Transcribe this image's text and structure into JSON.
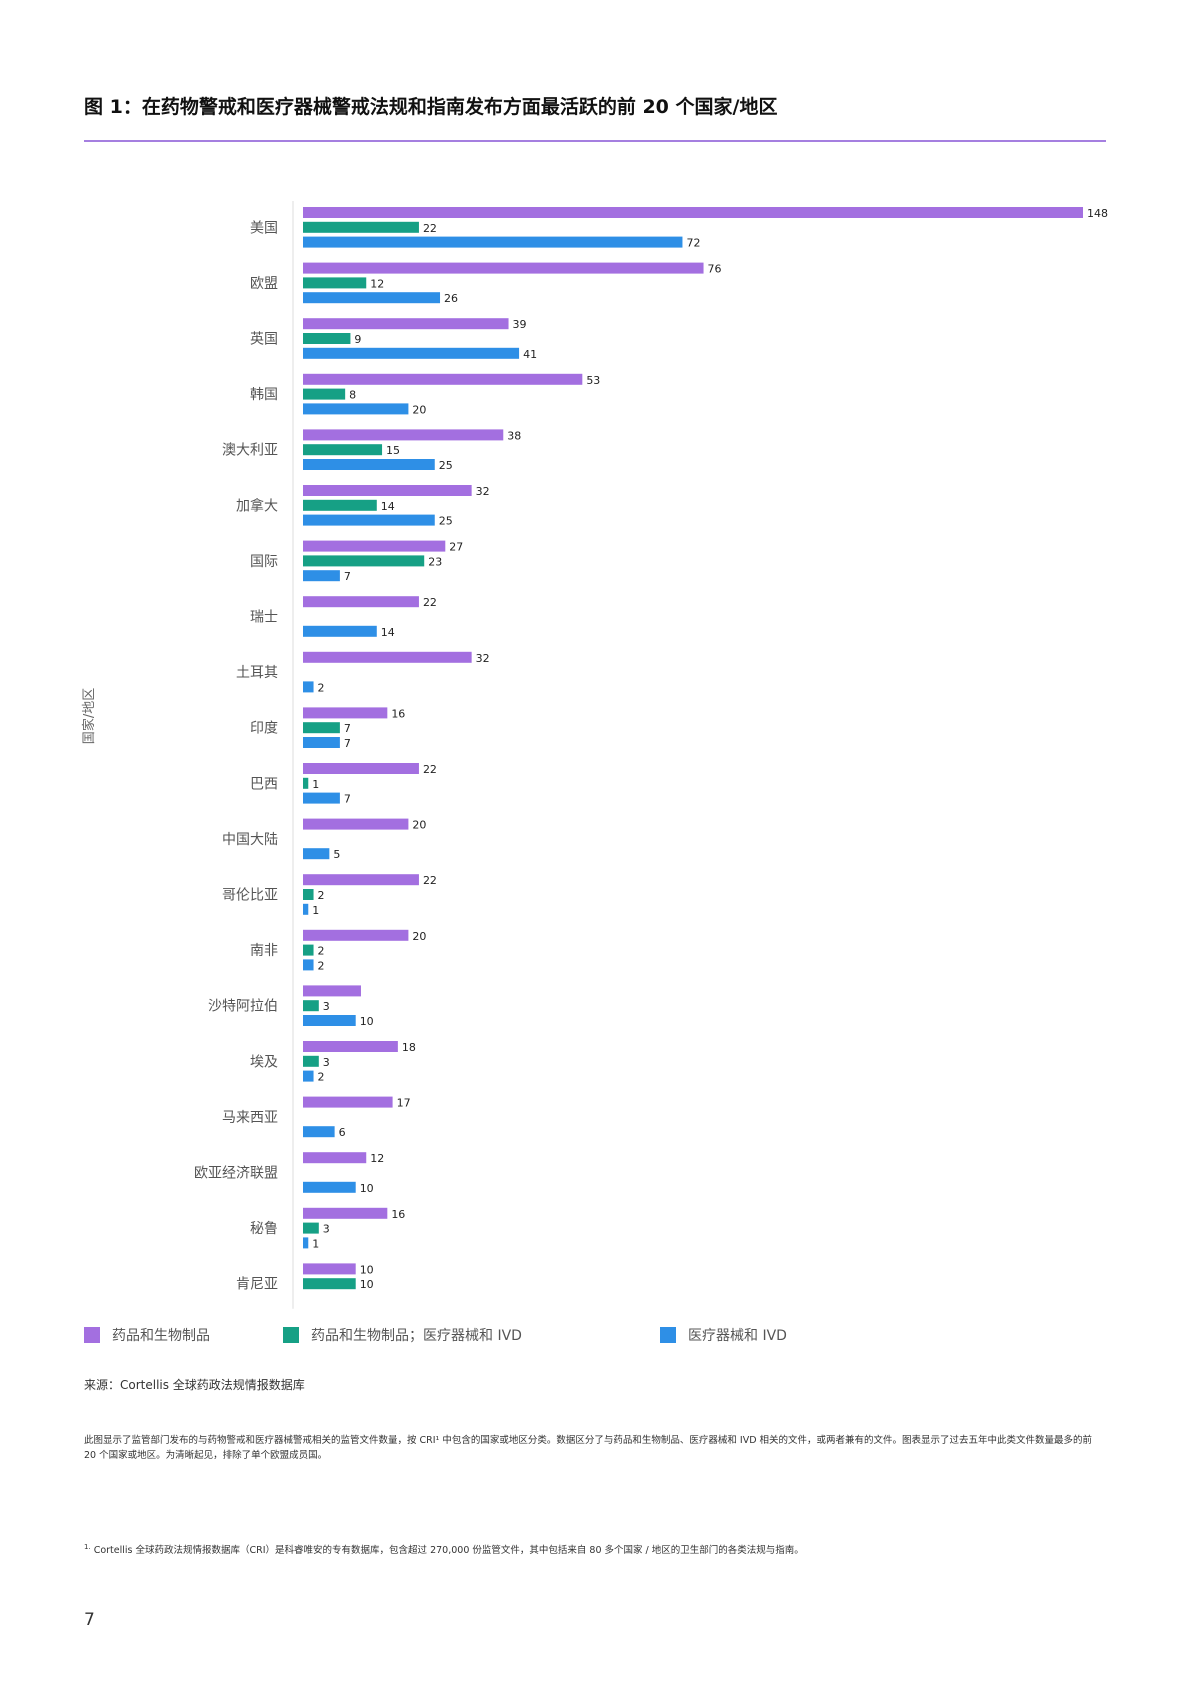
{
  "title": "图 1：在药物警戒和医疗器械警戒法规和指南发布方面最活跃的前 20 个国家/地区",
  "chart_data": {
    "type": "bar",
    "orientation": "horizontal",
    "ylabel": "国家/地区",
    "categories": [
      "美国",
      "欧盟",
      "英国",
      "韩国",
      "澳大利亚",
      "加拿大",
      "国际",
      "瑞士",
      "土耳其",
      "印度",
      "巴西",
      "中国大陆",
      "哥伦比亚",
      "南非",
      "沙特阿拉伯",
      "埃及",
      "马来西亚",
      "欧亚经济联盟",
      "秘鲁",
      "肯尼亚"
    ],
    "series": [
      {
        "name": "药品和生物制品",
        "color": "#a36fe0",
        "values": [
          148,
          76,
          39,
          53,
          38,
          32,
          27,
          22,
          32,
          16,
          22,
          20,
          22,
          20,
          11,
          18,
          17,
          12,
          16,
          10
        ],
        "labels": [
          "148",
          "76",
          "39",
          "53",
          "38",
          "32",
          "27",
          "22",
          "32",
          "16",
          "22",
          "20",
          "22",
          "20",
          "",
          "18",
          "17",
          "12",
          "16",
          "10"
        ]
      },
      {
        "name": "药品和生物制品；医疗器械和 IVD",
        "color": "#16a085",
        "values": [
          22,
          12,
          9,
          8,
          15,
          14,
          23,
          null,
          null,
          7,
          1,
          null,
          2,
          2,
          3,
          3,
          null,
          null,
          3,
          10
        ],
        "labels": [
          "22",
          "12",
          "9",
          "8",
          "15",
          "14",
          "23",
          "",
          "",
          "7",
          "1",
          "",
          "2",
          "2",
          "3",
          "3",
          "",
          "",
          "3",
          "10"
        ]
      },
      {
        "name": "医疗器械和 IVD",
        "color": "#2e8fe6",
        "values": [
          72,
          26,
          41,
          20,
          25,
          25,
          7,
          14,
          2,
          7,
          7,
          5,
          1,
          2,
          10,
          2,
          6,
          10,
          1,
          null
        ],
        "labels": [
          "72",
          "26",
          "41",
          "20",
          "25",
          "25",
          "7",
          "14",
          "2",
          "7",
          "7",
          "5",
          "1",
          "2",
          "10",
          "2",
          "6",
          "10",
          "1",
          ""
        ]
      }
    ],
    "xlim": [
      0,
      148
    ],
    "grid": false,
    "legend": "bottom"
  },
  "source": "来源：Cortellis 全球药政法规情报数据库",
  "note": "此图显示了监管部门发布的与药物警戒和医疗器械警戒相关的监管文件数量，按 CRI¹ 中包含的国家或地区分类。数据区分了与药品和生物制品、医疗器械和 IVD 相关的文件，或两者兼有的文件。图表显示了过去五年中此类文件数量最多的前 20 个国家或地区。为清晰起见，排除了单个欧盟成员国。",
  "footnote_marker": "1.",
  "footnote": " Cortellis 全球药政法规情报数据库（CRI）是科睿唯安的专有数据库，包含超过 270,000 份监管文件，其中包括来自 80 多个国家 / 地区的卫生部门的各类法规与指南。",
  "page_number": "7"
}
